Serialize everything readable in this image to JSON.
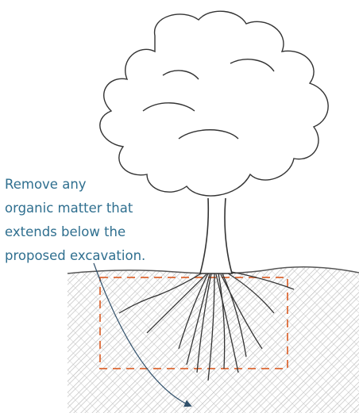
{
  "annotation": {
    "lines": [
      "Remove any",
      "organic matter that",
      "extends below the",
      "proposed excavation."
    ]
  }
}
